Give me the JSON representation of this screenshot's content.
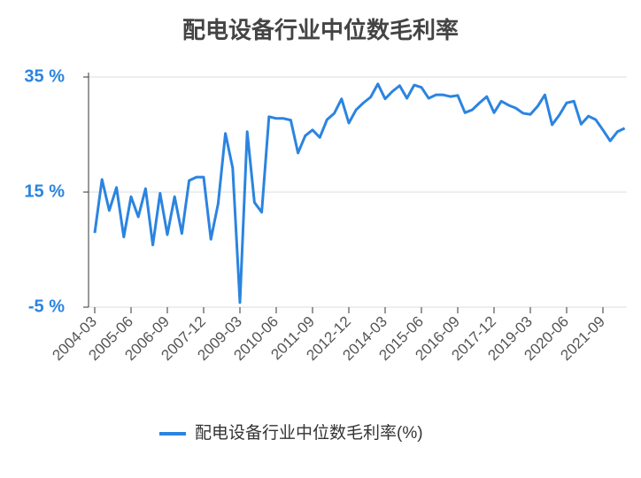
{
  "chart_data": {
    "type": "line",
    "title": "配电设备行业中位数毛利率",
    "categories": [
      "2004-03",
      null,
      null,
      null,
      null,
      "2005-06",
      null,
      null,
      null,
      null,
      "2006-09",
      null,
      null,
      null,
      null,
      "2007-12",
      null,
      null,
      null,
      null,
      "2009-03",
      null,
      null,
      null,
      null,
      "2010-06",
      null,
      null,
      null,
      null,
      "2011-09",
      null,
      null,
      null,
      null,
      "2012-12",
      null,
      null,
      null,
      null,
      "2014-03",
      null,
      null,
      null,
      null,
      "2015-06",
      null,
      null,
      null,
      null,
      "2016-09",
      null,
      null,
      null,
      null,
      "2017-12",
      null,
      null,
      null,
      null,
      "2019-03",
      null,
      null,
      null,
      null,
      "2020-06",
      null,
      null,
      null,
      null,
      "2021-09",
      null,
      null,
      null
    ],
    "series": [
      {
        "name": "配电设备行业中位数毛利率(%)",
        "color": "#2b84e0",
        "values": [
          7.9,
          17.2,
          11.8,
          15.8,
          7.2,
          14.2,
          10.7,
          15.6,
          5.8,
          14.8,
          7.6,
          14.2,
          7.8,
          17.0,
          17.6,
          17.6,
          6.8,
          13.0,
          25.2,
          19.2,
          -4.2,
          25.5,
          13.2,
          11.5,
          28.1,
          27.8,
          27.8,
          27.5,
          21.8,
          24.8,
          25.8,
          24.5,
          27.6,
          28.7,
          31.2,
          27.0,
          29.3,
          30.5,
          31.5,
          33.8,
          31.2,
          32.5,
          33.5,
          31.3,
          33.6,
          33.2,
          31.3,
          31.9,
          31.9,
          31.6,
          31.8,
          28.8,
          29.3,
          30.5,
          31.6,
          28.8,
          30.8,
          30.1,
          29.6,
          28.7,
          28.5,
          29.9,
          31.9,
          26.7,
          28.4,
          30.5,
          30.8,
          26.8,
          28.2,
          27.6,
          25.8,
          23.9,
          25.5,
          26.1
        ]
      }
    ],
    "ylim": [
      -5,
      35
    ],
    "yticks": [
      {
        "value": 35,
        "label": "35 %"
      },
      {
        "value": 15,
        "label": "15 %"
      },
      {
        "value": -5,
        "label": "-5 %"
      }
    ],
    "grid": true
  }
}
